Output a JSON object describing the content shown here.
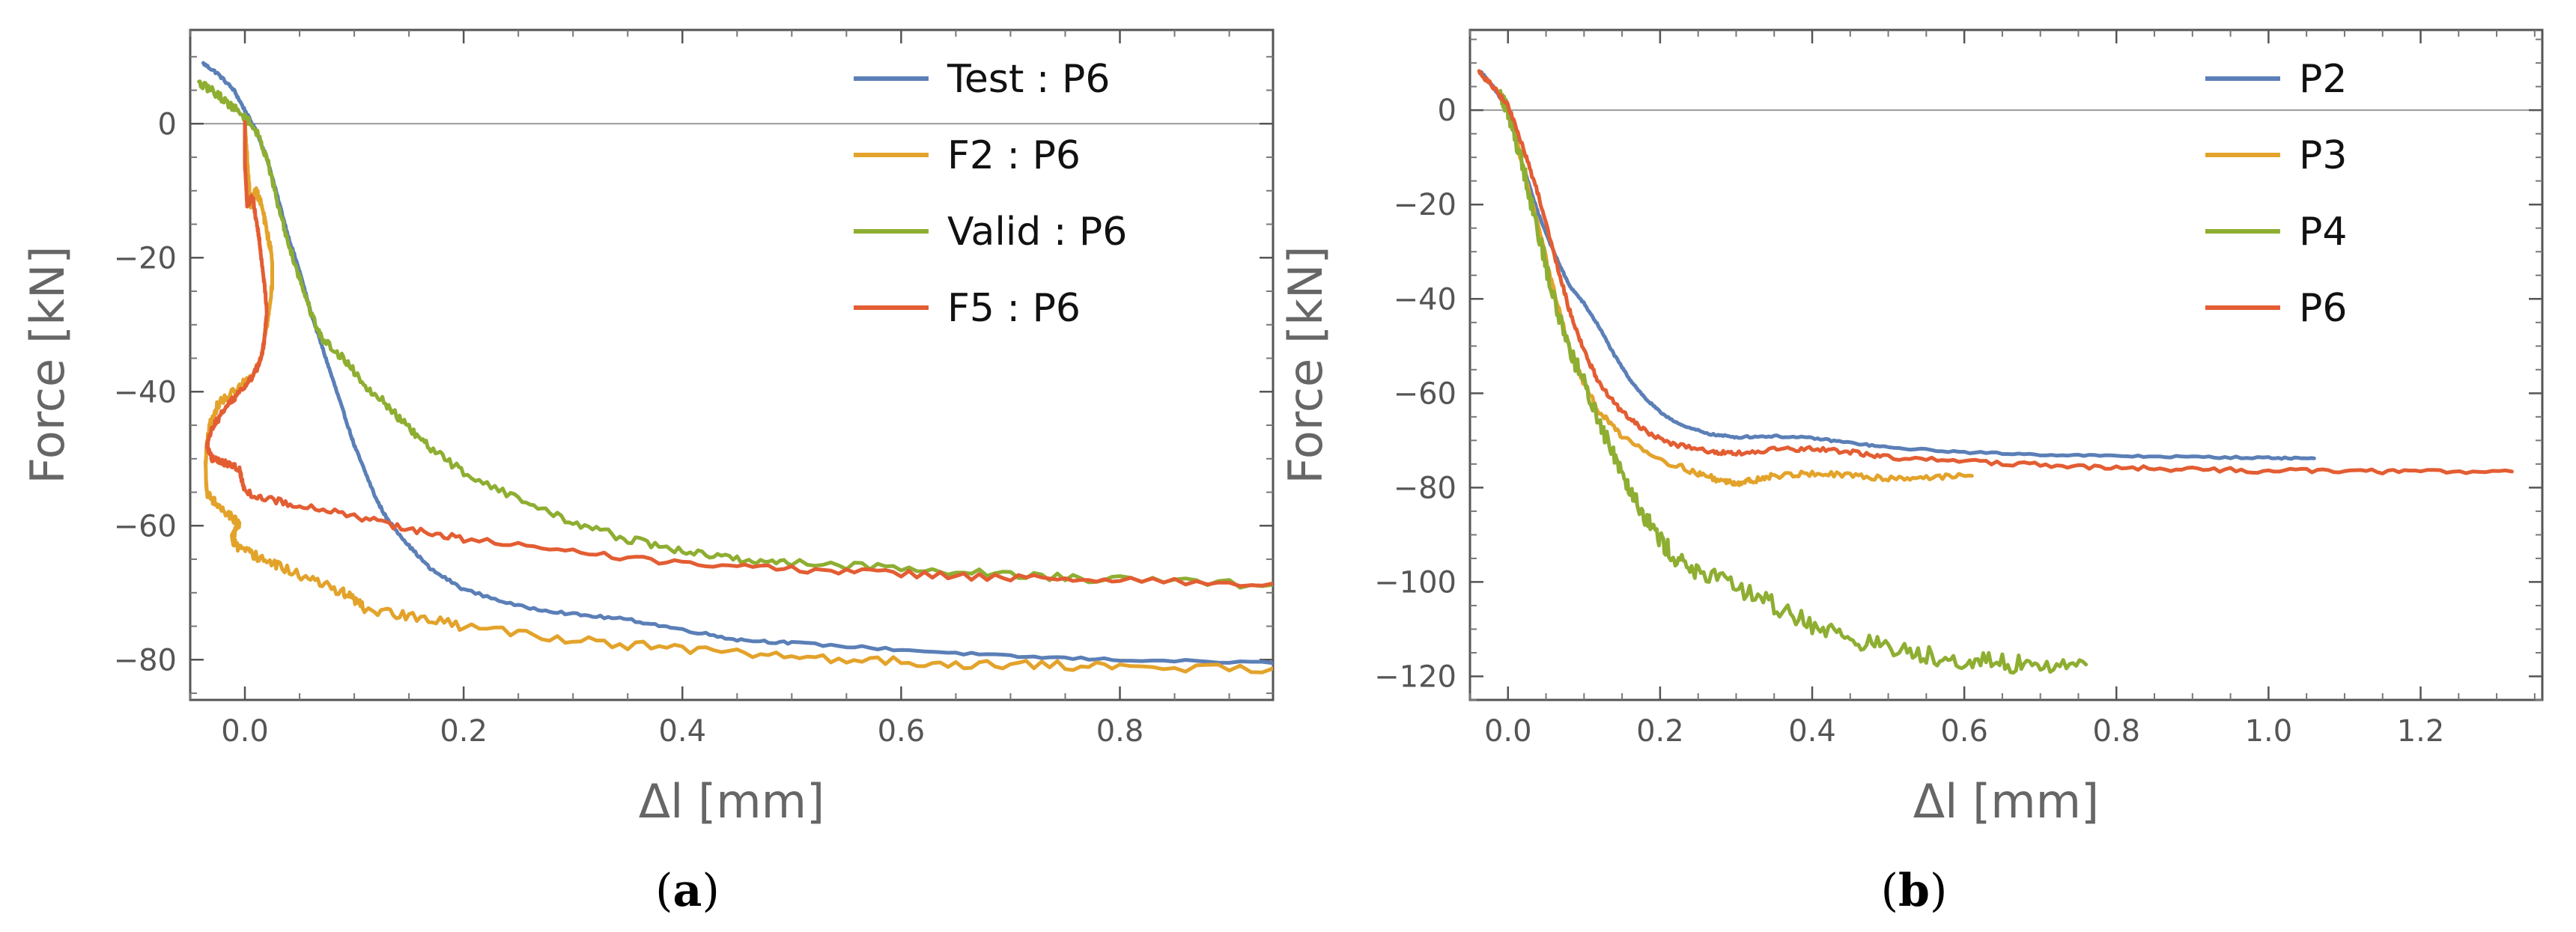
{
  "chart_data": [
    {
      "type": "line",
      "caption": "a",
      "xlabel": "Δl [mm]",
      "ylabel": "Force [kN]",
      "xlim": [
        -0.05,
        0.94
      ],
      "ylim": [
        -86,
        14
      ],
      "xticks": [
        0.0,
        0.2,
        0.4,
        0.6,
        0.8
      ],
      "xtick_labels": [
        "0.0",
        "0.2",
        "0.4",
        "0.6",
        "0.8"
      ],
      "yticks": [
        0,
        -20,
        -40,
        -60,
        -80
      ],
      "ytick_labels": [
        "0",
        "−20",
        "−40",
        "−60",
        "−80"
      ],
      "zero_line": true,
      "legend_position": "top-right",
      "series": [
        {
          "name": "Test : P6",
          "color": "#5B7FB7",
          "noise": 0.2,
          "points": [
            [
              -0.038,
              9
            ],
            [
              -0.025,
              7.5
            ],
            [
              -0.01,
              5
            ],
            [
              0.0,
              2
            ],
            [
              0.01,
              -1
            ],
            [
              0.02,
              -5
            ],
            [
              0.03,
              -11
            ],
            [
              0.04,
              -17
            ],
            [
              0.05,
              -22
            ],
            [
              0.06,
              -28
            ],
            [
              0.07,
              -33
            ],
            [
              0.08,
              -38
            ],
            [
              0.09,
              -43
            ],
            [
              0.1,
              -48
            ],
            [
              0.11,
              -52
            ],
            [
              0.12,
              -56
            ],
            [
              0.13,
              -59
            ],
            [
              0.15,
              -63
            ],
            [
              0.17,
              -66.5
            ],
            [
              0.2,
              -69.5
            ],
            [
              0.25,
              -72
            ],
            [
              0.3,
              -73.2
            ],
            [
              0.35,
              -74
            ],
            [
              0.4,
              -75.5
            ],
            [
              0.45,
              -77
            ],
            [
              0.5,
              -77.5
            ],
            [
              0.6,
              -78.5
            ],
            [
              0.7,
              -79.5
            ],
            [
              0.8,
              -80
            ],
            [
              0.94,
              -80.5
            ]
          ]
        },
        {
          "name": "F2 : P6",
          "color": "#E3A32B",
          "noise": 0.7,
          "points": [
            [
              0.0,
              0
            ],
            [
              0.002,
              -5
            ],
            [
              0.005,
              -12
            ],
            [
              0.01,
              -10
            ],
            [
              0.015,
              -12
            ],
            [
              0.02,
              -16
            ],
            [
              0.025,
              -20
            ],
            [
              0.025,
              -24
            ],
            [
              0.02,
              -30
            ],
            [
              0.015,
              -35
            ],
            [
              0.005,
              -38
            ],
            [
              -0.01,
              -40
            ],
            [
              -0.025,
              -42
            ],
            [
              -0.032,
              -45
            ],
            [
              -0.035,
              -48
            ],
            [
              -0.036,
              -51
            ],
            [
              -0.035,
              -55
            ],
            [
              -0.025,
              -57
            ],
            [
              -0.012,
              -58.5
            ],
            [
              -0.005,
              -60
            ],
            [
              -0.01,
              -61
            ],
            [
              -0.012,
              -62
            ],
            [
              -0.005,
              -63.5
            ],
            [
              0.01,
              -64.5
            ],
            [
              0.03,
              -66
            ],
            [
              0.06,
              -68
            ],
            [
              0.09,
              -70
            ],
            [
              0.1,
              -71
            ],
            [
              0.11,
              -72.5
            ],
            [
              0.15,
              -73.5
            ],
            [
              0.2,
              -75
            ],
            [
              0.3,
              -77
            ],
            [
              0.4,
              -78.5
            ],
            [
              0.5,
              -79.5
            ],
            [
              0.6,
              -80.3
            ],
            [
              0.7,
              -80.8
            ],
            [
              0.8,
              -81
            ],
            [
              0.94,
              -81.3
            ]
          ]
        },
        {
          "name": "Valid : P6",
          "color": "#8EAE32",
          "noise": 0.6,
          "points": [
            [
              -0.042,
              6
            ],
            [
              -0.03,
              5
            ],
            [
              -0.015,
              3
            ],
            [
              0.0,
              1
            ],
            [
              0.01,
              -1
            ],
            [
              0.02,
              -5
            ],
            [
              0.03,
              -12
            ],
            [
              0.04,
              -18
            ],
            [
              0.05,
              -23
            ],
            [
              0.06,
              -28
            ],
            [
              0.07,
              -32
            ],
            [
              0.09,
              -35
            ],
            [
              0.11,
              -39
            ],
            [
              0.13,
              -42
            ],
            [
              0.15,
              -45.5
            ],
            [
              0.17,
              -48.5
            ],
            [
              0.2,
              -52
            ],
            [
              0.25,
              -56
            ],
            [
              0.3,
              -59.5
            ],
            [
              0.35,
              -62
            ],
            [
              0.4,
              -63.8
            ],
            [
              0.45,
              -65
            ],
            [
              0.5,
              -65.5
            ],
            [
              0.6,
              -66.3
            ],
            [
              0.7,
              -67.3
            ],
            [
              0.8,
              -68.1
            ],
            [
              0.94,
              -68.8
            ]
          ]
        },
        {
          "name": "F5 : P6",
          "color": "#E35D33",
          "noise": 0.5,
          "points": [
            [
              0.0,
              0
            ],
            [
              0.0,
              -6
            ],
            [
              0.002,
              -12
            ],
            [
              0.007,
              -11
            ],
            [
              0.01,
              -14
            ],
            [
              0.013,
              -17
            ],
            [
              0.015,
              -20
            ],
            [
              0.018,
              -24
            ],
            [
              0.02,
              -28
            ],
            [
              0.018,
              -32
            ],
            [
              0.015,
              -35
            ],
            [
              0.008,
              -37.5
            ],
            [
              0.0,
              -39
            ],
            [
              -0.01,
              -41
            ],
            [
              -0.02,
              -43
            ],
            [
              -0.03,
              -45.5
            ],
            [
              -0.035,
              -48
            ],
            [
              -0.03,
              -50
            ],
            [
              -0.02,
              -50.5
            ],
            [
              -0.005,
              -51.5
            ],
            [
              -0.003,
              -53
            ],
            [
              0.0,
              -55
            ],
            [
              0.02,
              -56
            ],
            [
              0.05,
              -57
            ],
            [
              0.1,
              -58.5
            ],
            [
              0.15,
              -60.5
            ],
            [
              0.2,
              -62
            ],
            [
              0.3,
              -64
            ],
            [
              0.4,
              -65.5
            ],
            [
              0.5,
              -66.5
            ],
            [
              0.6,
              -67.2
            ],
            [
              0.7,
              -67.8
            ],
            [
              0.8,
              -68.2
            ],
            [
              0.94,
              -68.6
            ]
          ]
        }
      ]
    },
    {
      "type": "line",
      "caption": "b",
      "xlabel": "Δl [mm]",
      "ylabel": "Force [kN]",
      "xlim": [
        -0.05,
        1.36
      ],
      "ylim": [
        -125,
        17
      ],
      "xticks": [
        0.0,
        0.2,
        0.4,
        0.6,
        0.8,
        1.0,
        1.2
      ],
      "xtick_labels": [
        "0.0",
        "0.2",
        "0.4",
        "0.6",
        "0.8",
        "1.0",
        "1.2"
      ],
      "yticks": [
        0,
        -20,
        -40,
        -60,
        -80,
        -100,
        -120
      ],
      "ytick_labels": [
        "0",
        "−20",
        "−40",
        "−60",
        "−80",
        "−100",
        "−120"
      ],
      "zero_line": true,
      "legend_position": "top-right",
      "series": [
        {
          "name": "P2",
          "color": "#5B7FB7",
          "noise": 0.2,
          "points": [
            [
              -0.035,
              8
            ],
            [
              -0.02,
              5
            ],
            [
              0.0,
              0
            ],
            [
              0.02,
              -12
            ],
            [
              0.04,
              -22
            ],
            [
              0.06,
              -30
            ],
            [
              0.08,
              -37
            ],
            [
              0.1,
              -41
            ],
            [
              0.12,
              -46
            ],
            [
              0.14,
              -52
            ],
            [
              0.16,
              -57
            ],
            [
              0.18,
              -61
            ],
            [
              0.2,
              -64
            ],
            [
              0.23,
              -67
            ],
            [
              0.27,
              -68.8
            ],
            [
              0.3,
              -69.3
            ],
            [
              0.35,
              -69.1
            ],
            [
              0.4,
              -69.5
            ],
            [
              0.45,
              -70.5
            ],
            [
              0.5,
              -71.5
            ],
            [
              0.6,
              -72.5
            ],
            [
              0.7,
              -73
            ],
            [
              0.8,
              -73.3
            ],
            [
              0.9,
              -73.5
            ],
            [
              1.0,
              -73.7
            ],
            [
              1.06,
              -73.8
            ]
          ]
        },
        {
          "name": "P3",
          "color": "#E3A32B",
          "noise": 0.6,
          "points": [
            [
              -0.01,
              3
            ],
            [
              0.0,
              0
            ],
            [
              0.02,
              -12
            ],
            [
              0.04,
              -25
            ],
            [
              0.06,
              -38
            ],
            [
              0.08,
              -50
            ],
            [
              0.1,
              -58
            ],
            [
              0.12,
              -64
            ],
            [
              0.15,
              -69
            ],
            [
              0.2,
              -74
            ],
            [
              0.25,
              -77
            ],
            [
              0.28,
              -78.5
            ],
            [
              0.3,
              -79
            ],
            [
              0.32,
              -78.5
            ],
            [
              0.35,
              -77.5
            ],
            [
              0.4,
              -77
            ],
            [
              0.45,
              -77.5
            ],
            [
              0.5,
              -78
            ],
            [
              0.55,
              -77.8
            ],
            [
              0.61,
              -77.5
            ]
          ]
        },
        {
          "name": "P4",
          "color": "#8EAE32",
          "noise": 2.0,
          "points": [
            [
              -0.01,
              3
            ],
            [
              0.0,
              0
            ],
            [
              0.02,
              -12
            ],
            [
              0.04,
              -26
            ],
            [
              0.06,
              -40
            ],
            [
              0.08,
              -50
            ],
            [
              0.1,
              -58
            ],
            [
              0.12,
              -66
            ],
            [
              0.14,
              -73
            ],
            [
              0.16,
              -80
            ],
            [
              0.18,
              -86
            ],
            [
              0.2,
              -91
            ],
            [
              0.22,
              -95
            ],
            [
              0.25,
              -98
            ],
            [
              0.3,
              -101
            ],
            [
              0.35,
              -105
            ],
            [
              0.4,
              -109
            ],
            [
              0.45,
              -112
            ],
            [
              0.5,
              -114
            ],
            [
              0.55,
              -115.5
            ],
            [
              0.6,
              -116.5
            ],
            [
              0.65,
              -117.3
            ],
            [
              0.7,
              -117.7
            ],
            [
              0.76,
              -117.5
            ]
          ]
        },
        {
          "name": "P6",
          "color": "#E35D33",
          "noise": 0.5,
          "points": [
            [
              -0.038,
              8
            ],
            [
              -0.02,
              5
            ],
            [
              0.0,
              1
            ],
            [
              0.02,
              -8
            ],
            [
              0.04,
              -18
            ],
            [
              0.06,
              -30
            ],
            [
              0.08,
              -42
            ],
            [
              0.1,
              -51
            ],
            [
              0.12,
              -58
            ],
            [
              0.15,
              -64
            ],
            [
              0.18,
              -68
            ],
            [
              0.22,
              -71
            ],
            [
              0.27,
              -72.5
            ],
            [
              0.3,
              -72.8
            ],
            [
              0.35,
              -72
            ],
            [
              0.4,
              -71.8
            ],
            [
              0.45,
              -72.5
            ],
            [
              0.5,
              -73.5
            ],
            [
              0.6,
              -74.5
            ],
            [
              0.7,
              -75.2
            ],
            [
              0.8,
              -75.8
            ],
            [
              0.9,
              -76.2
            ],
            [
              1.0,
              -76.4
            ],
            [
              1.1,
              -76.5
            ],
            [
              1.2,
              -76.6
            ],
            [
              1.32,
              -76.6
            ]
          ]
        }
      ]
    }
  ]
}
